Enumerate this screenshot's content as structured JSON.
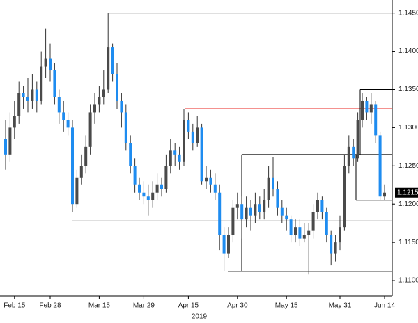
{
  "chart_data": {
    "type": "candlestick",
    "categories": [
      null,
      null,
      "Feb 15",
      null,
      null,
      null,
      null,
      null,
      null,
      null,
      "Feb 28",
      null,
      null,
      null,
      null,
      null,
      null,
      null,
      null,
      null,
      null,
      "Mar 15",
      null,
      null,
      null,
      null,
      null,
      null,
      null,
      null,
      null,
      "Mar 29",
      null,
      null,
      null,
      null,
      null,
      null,
      null,
      null,
      null,
      "Apr 15",
      null,
      null,
      null,
      null,
      null,
      null,
      null,
      null,
      null,
      null,
      "Apr 30",
      null,
      null,
      null,
      null,
      null,
      null,
      null,
      null,
      null,
      null,
      "May 15",
      null,
      null,
      null,
      null,
      null,
      null,
      null,
      null,
      null,
      null,
      null,
      "May 31",
      null,
      null,
      null,
      null,
      null,
      null,
      null,
      null,
      null,
      "Jun 14"
    ],
    "year_label": "2019",
    "open": [
      1.1285,
      1.1265,
      1.13,
      1.1315,
      1.1345,
      1.134,
      1.1335,
      1.135,
      1.1335,
      1.138,
      1.139,
      1.1375,
      1.134,
      1.132,
      1.131,
      1.13,
      1.12,
      1.1235,
      1.125,
      1.1275,
      1.132,
      1.133,
      1.134,
      1.135,
      1.1405,
      1.137,
      1.1335,
      1.132,
      1.128,
      1.125,
      1.1225,
      1.1215,
      1.121,
      1.1205,
      1.1215,
      1.1225,
      1.122,
      1.125,
      1.127,
      1.1265,
      1.1255,
      1.131,
      1.1295,
      1.128,
      1.13,
      1.123,
      1.1235,
      1.1225,
      1.1215,
      1.116,
      1.1135,
      1.116,
      1.1195,
      1.12,
      1.118,
      1.1195,
      1.1185,
      1.12,
      1.119,
      1.1205,
      1.1235,
      1.122,
      1.1195,
      1.1185,
      1.118,
      1.116,
      1.117,
      1.1155,
      1.116,
      1.1165,
      1.119,
      1.1205,
      1.119,
      1.116,
      1.1135,
      1.115,
      1.117,
      1.125,
      1.1275,
      1.126,
      1.131,
      1.1335,
      1.132,
      1.133,
      1.129,
      1.121
    ],
    "high": [
      1.131,
      1.132,
      1.1335,
      1.136,
      1.1355,
      1.1365,
      1.137,
      1.136,
      1.14,
      1.143,
      1.141,
      1.1385,
      1.135,
      1.1335,
      1.132,
      1.131,
      1.1245,
      1.1265,
      1.129,
      1.133,
      1.1345,
      1.1355,
      1.1375,
      1.145,
      1.141,
      1.1385,
      1.1345,
      1.133,
      1.129,
      1.126,
      1.1235,
      1.123,
      1.1225,
      1.123,
      1.124,
      1.1235,
      1.1265,
      1.1285,
      1.128,
      1.1275,
      1.1325,
      1.132,
      1.1305,
      1.1315,
      1.1305,
      1.125,
      1.1245,
      1.124,
      1.1225,
      1.117,
      1.117,
      1.1205,
      1.1215,
      1.121,
      1.121,
      1.1205,
      1.1215,
      1.121,
      1.122,
      1.125,
      1.1262,
      1.123,
      1.1205,
      1.1195,
      1.1185,
      1.118,
      1.118,
      1.1175,
      1.1175,
      1.12,
      1.1215,
      1.121,
      1.1195,
      1.1165,
      1.116,
      1.1185,
      1.1265,
      1.129,
      1.1285,
      1.132,
      1.1345,
      1.134,
      1.1345,
      1.1335,
      1.1295,
      1.1225
    ],
    "low": [
      1.1245,
      1.1255,
      1.1285,
      1.1305,
      1.1325,
      1.132,
      1.1325,
      1.132,
      1.133,
      1.1365,
      1.136,
      1.133,
      1.1305,
      1.1295,
      1.129,
      1.119,
      1.1195,
      1.1225,
      1.124,
      1.1265,
      1.1305,
      1.132,
      1.133,
      1.1345,
      1.136,
      1.1325,
      1.13,
      1.127,
      1.124,
      1.1215,
      1.1205,
      1.12,
      1.1185,
      1.1195,
      1.1205,
      1.121,
      1.1215,
      1.124,
      1.125,
      1.1245,
      1.125,
      1.1285,
      1.127,
      1.1275,
      1.1225,
      1.122,
      1.1215,
      1.1205,
      1.114,
      1.1112,
      1.113,
      1.115,
      1.118,
      1.1155,
      1.117,
      1.1165,
      1.1175,
      1.118,
      1.118,
      1.1195,
      1.121,
      1.1185,
      1.1175,
      1.1165,
      1.115,
      1.115,
      1.1145,
      1.115,
      1.1108,
      1.1155,
      1.118,
      1.118,
      1.115,
      1.112,
      1.1125,
      1.114,
      1.1165,
      1.124,
      1.125,
      1.1255,
      1.13,
      1.131,
      1.1305,
      1.128,
      1.1205,
      1.1205
    ],
    "close": [
      1.1265,
      1.13,
      1.1315,
      1.1345,
      1.134,
      1.1335,
      1.135,
      1.1335,
      1.138,
      1.139,
      1.1375,
      1.134,
      1.132,
      1.131,
      1.13,
      1.12,
      1.1235,
      1.125,
      1.1275,
      1.132,
      1.133,
      1.134,
      1.135,
      1.1405,
      1.137,
      1.1335,
      1.132,
      1.128,
      1.125,
      1.1225,
      1.1215,
      1.121,
      1.1205,
      1.1215,
      1.1225,
      1.122,
      1.125,
      1.127,
      1.1265,
      1.1255,
      1.131,
      1.1295,
      1.128,
      1.13,
      1.123,
      1.1235,
      1.1225,
      1.1215,
      1.116,
      1.1135,
      1.116,
      1.1195,
      1.12,
      1.118,
      1.1195,
      1.1185,
      1.12,
      1.119,
      1.1205,
      1.1235,
      1.122,
      1.1195,
      1.1185,
      1.118,
      1.116,
      1.117,
      1.1155,
      1.116,
      1.1165,
      1.119,
      1.1205,
      1.119,
      1.116,
      1.1135,
      1.115,
      1.117,
      1.125,
      1.1275,
      1.126,
      1.131,
      1.1335,
      1.132,
      1.133,
      1.129,
      1.121,
      1.1215
    ],
    "up_color": "#4a4a4a",
    "down_color": "#1e8cf0",
    "levels": [
      {
        "value": 1.145,
        "color": "#000000"
      },
      {
        "value": 1.1325,
        "color": "#e8231f"
      },
      {
        "value": 1.135,
        "color": "#000000"
      },
      {
        "value": 1.1265,
        "color": "#000000"
      },
      {
        "value": 1.1178,
        "color": "#000000"
      },
      {
        "value": 1.1112,
        "color": "#000000"
      },
      {
        "value": 1.1205,
        "color": "#000000"
      }
    ],
    "last_price": {
      "value": 1.1215,
      "label": "1.1215"
    },
    "ylim": [
      1.108,
      1.1467
    ],
    "yticks": [
      {
        "value": 1.11,
        "label": "1.1100"
      },
      {
        "value": 1.115,
        "label": "1.1150"
      },
      {
        "value": 1.12,
        "label": "1.1200"
      },
      {
        "value": 1.125,
        "label": "1.1250"
      },
      {
        "value": 1.13,
        "label": "1.1300"
      },
      {
        "value": 1.135,
        "label": "1.1350"
      },
      {
        "value": 1.14,
        "label": "1.1400"
      },
      {
        "value": 1.145,
        "label": "1.1450"
      }
    ]
  }
}
